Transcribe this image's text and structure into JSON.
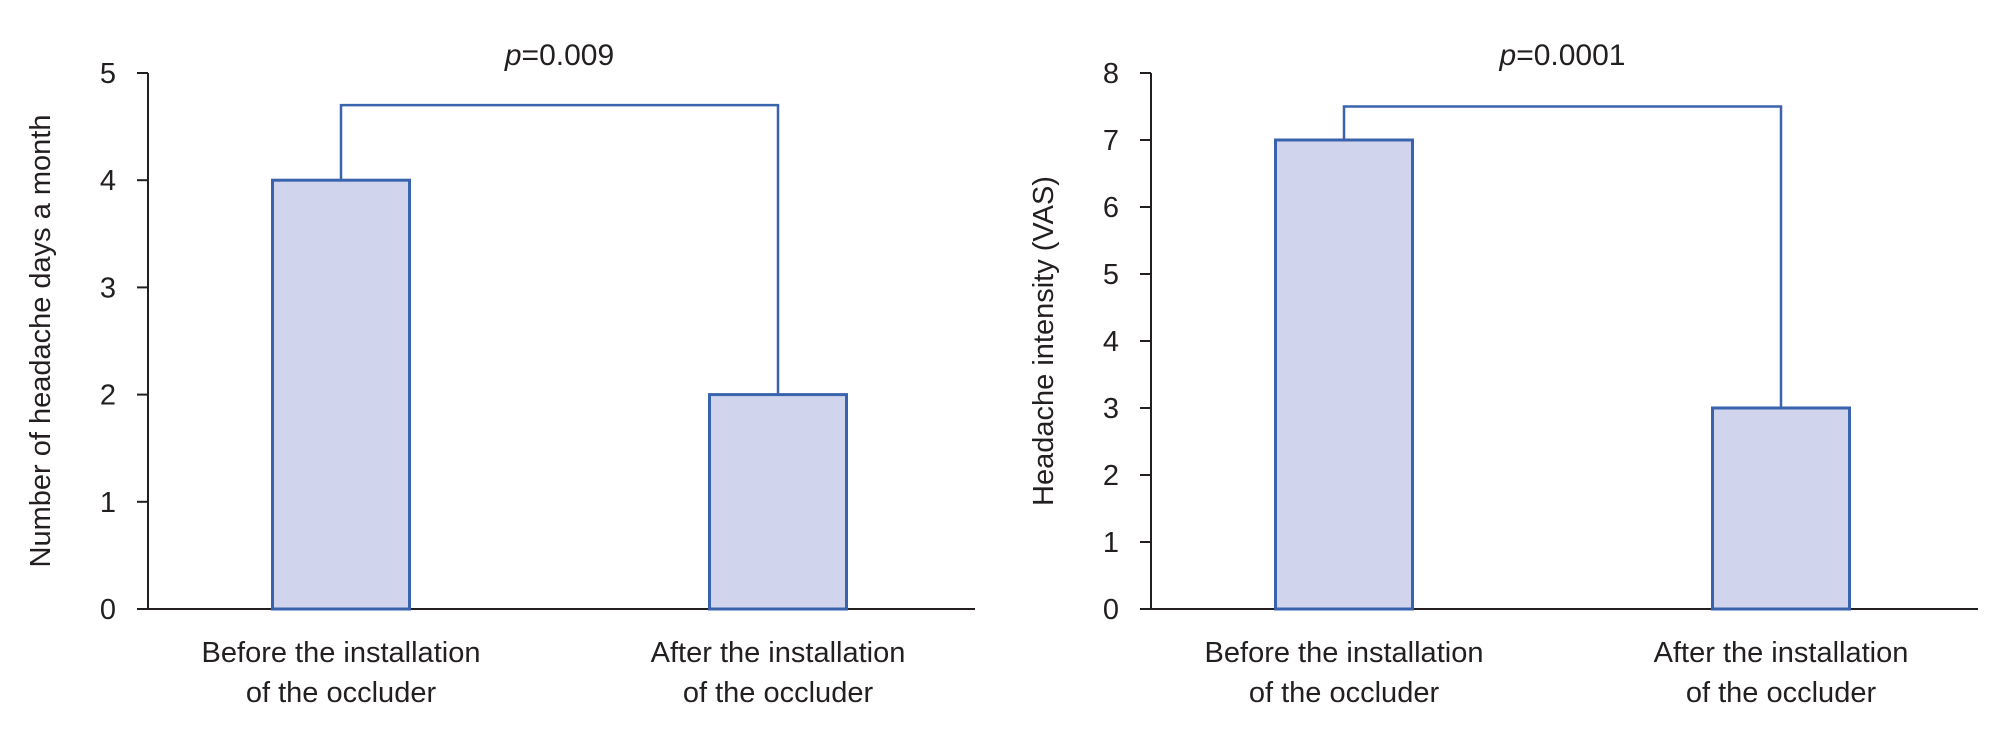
{
  "chart_data": [
    {
      "type": "bar",
      "categories": [
        [
          "Before the installation",
          "of the occluder"
        ],
        [
          "After the installation",
          "of the occluder"
        ]
      ],
      "values": [
        4,
        2
      ],
      "ylabel": "Number of headache days a month",
      "ylim": [
        0,
        5
      ],
      "yticks": [
        0,
        1,
        2,
        3,
        4,
        5
      ],
      "bracket_top": 4.7,
      "annotation": {
        "italic": "p",
        "rest": "=0.009"
      },
      "bar_fill": "#d0d5ed",
      "bar_stroke": "#3a63ad",
      "grid": false
    },
    {
      "type": "bar",
      "categories": [
        [
          "Before the installation",
          "of the occluder"
        ],
        [
          "After the installation",
          "of the occluder"
        ]
      ],
      "values": [
        7,
        3
      ],
      "ylabel": "Headache intensity (VAS)",
      "ylim": [
        0,
        8
      ],
      "yticks": [
        0,
        1,
        2,
        3,
        4,
        5,
        6,
        7,
        8
      ],
      "bracket_top": 7.5,
      "annotation": {
        "italic": "p",
        "rest": "=0.0001"
      },
      "bar_fill": "#d0d5ed",
      "bar_stroke": "#3a63ad",
      "grid": false
    }
  ]
}
